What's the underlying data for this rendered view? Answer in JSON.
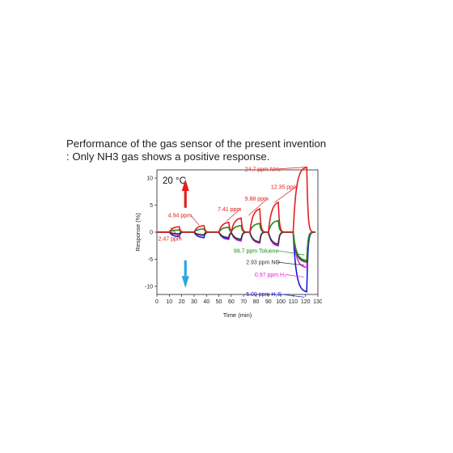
{
  "caption": {
    "line1": "Performance of the gas sensor of the present invention",
    "line2": ": Only NH3 gas shows a positive response."
  },
  "chart_data": {
    "type": "line",
    "ylabel": "Response (%)",
    "xlabel": "Time (min)",
    "xlim": [
      0,
      130
    ],
    "ylim": [
      -11.5,
      11.5
    ],
    "xticks": [
      0,
      10,
      20,
      30,
      40,
      50,
      60,
      70,
      80,
      90,
      100,
      110,
      120,
      130
    ],
    "yticks": [
      10,
      5,
      0,
      -5,
      -10
    ],
    "temperature_label": "20 °C",
    "colors": {
      "NH3": "#e02020",
      "Toluene": "#1e8a1e",
      "NO": "#333333",
      "H2": "#e020e0",
      "H2S": "#1a1adc",
      "up_arrow": "#e02020",
      "down_arrow": "#29a8e0"
    },
    "pulse_starts_min": [
      10,
      30,
      50,
      60,
      75,
      90,
      110
    ],
    "series": [
      {
        "name": "NH3",
        "peaks": [
          1.0,
          1.2,
          1.8,
          2.6,
          4.3,
          5.5,
          12.0
        ]
      },
      {
        "name": "Toluene",
        "peaks": [
          0.4,
          0.6,
          0.9,
          1.2,
          1.6,
          2.1,
          -5.2
        ]
      },
      {
        "name": "NO",
        "peaks": [
          -0.3,
          -0.5,
          -1.0,
          -1.3,
          -1.8,
          -2.2,
          -5.5
        ]
      },
      {
        "name": "H2",
        "peaks": [
          -0.4,
          -0.6,
          -1.1,
          -1.5,
          -2.0,
          -2.4,
          -6.5
        ]
      },
      {
        "name": "H2S",
        "peaks": [
          -0.8,
          -1.0,
          -1.3,
          -1.6,
          -2.0,
          -2.5,
          -11.0
        ]
      }
    ],
    "annotations": [
      {
        "text": "2.47 ppm",
        "color": "#e02020"
      },
      {
        "text": "4.94 ppm",
        "color": "#e02020"
      },
      {
        "text": "7.41 ppm",
        "color": "#e02020"
      },
      {
        "text": "9.88 ppm",
        "color": "#e02020"
      },
      {
        "text": "12.35 ppm",
        "color": "#e02020"
      },
      {
        "text": "24.7 ppm NH₃",
        "color": "#e02020"
      },
      {
        "text": "99.7 ppm Toluene",
        "color": "#1e8a1e"
      },
      {
        "text": "2.93 ppm NO",
        "color": "#333333"
      },
      {
        "text": "0.97 ppm H₂",
        "color": "#e020e0"
      },
      {
        "text": "5.00 ppm H₂S",
        "color": "#1a1adc"
      }
    ]
  }
}
